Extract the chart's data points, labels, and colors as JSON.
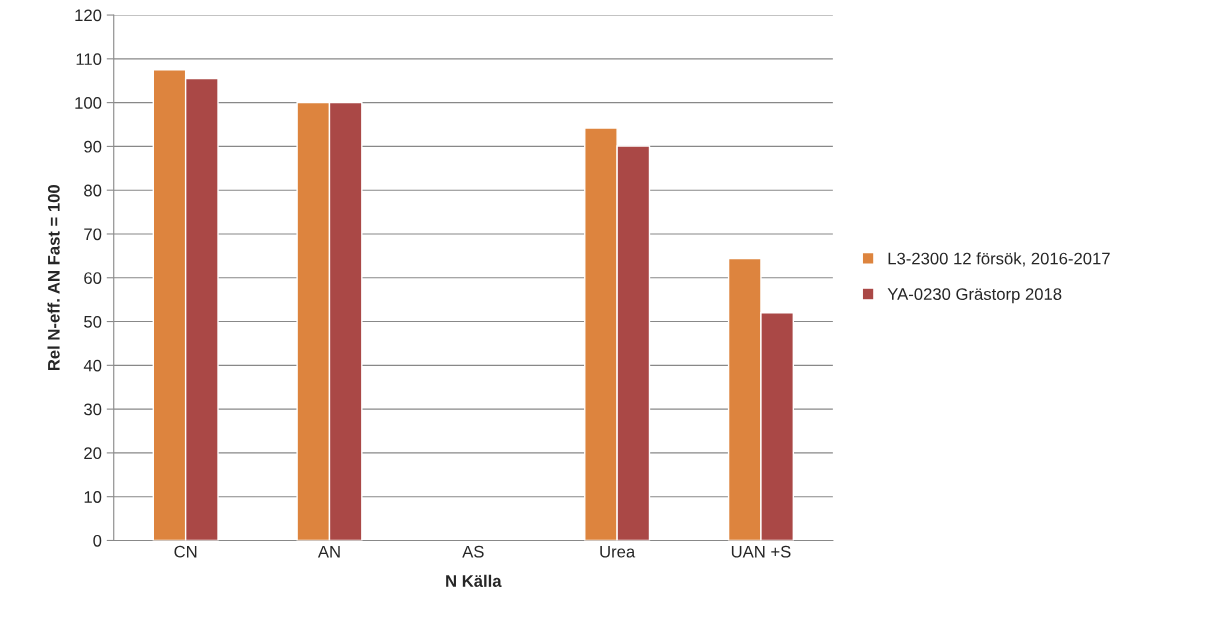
{
  "chart_data": {
    "type": "bar",
    "xlabel": "N Källa",
    "ylabel": "Rel N-eff. AN Fast = 100",
    "categories": [
      "CN",
      "AN",
      "AS",
      "Urea",
      "UAN +S"
    ],
    "series": [
      {
        "name": "L3-2300 12 försök, 2016-2017",
        "color": "#dd843e",
        "values": [
          107.5,
          100,
          null,
          94.2,
          64.4
        ]
      },
      {
        "name": "YA-0230 Grästorp 2018",
        "color": "#aa4846",
        "values": [
          105.5,
          100,
          null,
          90.1,
          52
        ]
      }
    ],
    "ylim": [
      0,
      120
    ],
    "yticks": [
      0,
      10,
      20,
      30,
      40,
      50,
      60,
      70,
      80,
      90,
      100,
      110,
      120
    ],
    "grid": "y",
    "legend": "right"
  }
}
